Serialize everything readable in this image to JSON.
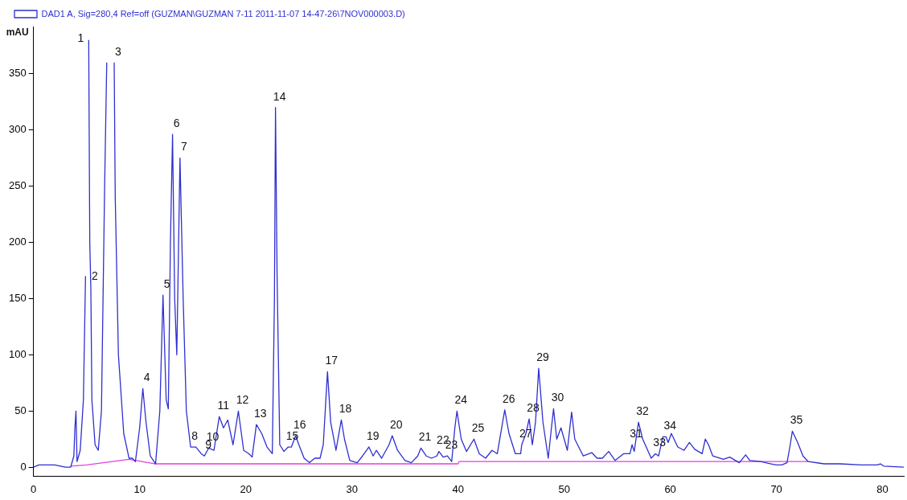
{
  "chart_data": {
    "type": "line",
    "ylabel": "mAU",
    "legend": "top left",
    "grid": false,
    "marker": "none",
    "line_style": "solid",
    "xlim": [
      0,
      82
    ],
    "ylim": [
      -8,
      392
    ],
    "xticks": [
      0,
      10,
      20,
      30,
      40,
      50,
      60,
      70,
      80
    ],
    "yticks": [
      0,
      50,
      100,
      150,
      200,
      250,
      300,
      350
    ],
    "series": [
      {
        "name": "DAD1 A, Sig=280,4 Ref=off (GUZMAN\\GUZMAN 7-11 2011-11-07 14-47-26\\7NOV000003.D)",
        "color": "#2f2fd0",
        "x": [
          0,
          0.5,
          2,
          3,
          3.5,
          3.8,
          3.9,
          4.0,
          4.1,
          4.4,
          4.7,
          4.9,
          5.0,
          5.2,
          5.3,
          5.4,
          5.5,
          5.8,
          6.1,
          6.4,
          6.7,
          6.9,
          7.0,
          7.5,
          7.6,
          7.7,
          8.0,
          8.5,
          9,
          9.3,
          9.6,
          10.0,
          10.3,
          10.6,
          11,
          11.5,
          11.9,
          12.2,
          12.5,
          12.7,
          12.9,
          13.1,
          13.3,
          13.5,
          13.8,
          14.1,
          14.4,
          14.8,
          15.3,
          15.8,
          16.1,
          16.5,
          17,
          17.5,
          17.9,
          18.3,
          18.8,
          19.3,
          19.8,
          20.3,
          20.6,
          21.0,
          21.5,
          22,
          22.5,
          22.7,
          22.8,
          22.95,
          23.2,
          23.6,
          24.0,
          24.3,
          24.7,
          25,
          25.5,
          26,
          26.5,
          27,
          27.3,
          27.7,
          28,
          28.5,
          29.0,
          29.3,
          29.8,
          30.5,
          31,
          31.6,
          32,
          32.3,
          32.8,
          33.5,
          33.8,
          34.3,
          35,
          35.6,
          36.2,
          36.5,
          37,
          37.5,
          38,
          38.2,
          38.6,
          39,
          39.4,
          39.7,
          39.9,
          40.3,
          40.8,
          41.5,
          42,
          42.6,
          43.2,
          43.7,
          44.2,
          44.4,
          44.8,
          45.4,
          45.9,
          46.0,
          46.4,
          46.7,
          47,
          47.3,
          47.6,
          48,
          48.5,
          48.8,
          49.0,
          49.3,
          49.7,
          50.3,
          50.7,
          51,
          51.8,
          52.6,
          53.1,
          53.6,
          54.2,
          54.8,
          55.6,
          56.2,
          56.4,
          56.6,
          57.0,
          57.4,
          58.2,
          58.6,
          58.9,
          59.3,
          59.6,
          59.8,
          60.1,
          60.7,
          61.3,
          61.8,
          62.3,
          63.0,
          63.3,
          63.6,
          64,
          65,
          65.6,
          66.5,
          67.1,
          67.5,
          68.5,
          69.5,
          70,
          70.5,
          71,
          71.3,
          71.5,
          72,
          72.5,
          73,
          74.5,
          76,
          78,
          79.5,
          79.8,
          80.1,
          82
        ],
        "values": [
          0,
          2,
          2,
          0,
          0,
          10,
          35,
          50,
          5,
          15,
          60,
          170,
          null,
          380,
          200,
          160,
          60,
          20,
          15,
          50,
          250,
          360,
          null,
          null,
          360,
          240,
          100,
          30,
          8,
          8,
          5,
          35,
          70,
          40,
          10,
          3,
          50,
          153,
          60,
          52,
          200,
          296,
          150,
          100,
          275,
          150,
          50,
          18,
          18,
          12,
          10,
          17,
          15,
          45,
          35,
          42,
          20,
          50,
          15,
          12,
          9,
          38,
          30,
          18,
          12,
          150,
          320,
          170,
          20,
          14,
          18,
          18,
          28,
          20,
          8,
          4,
          8,
          8,
          20,
          85,
          40,
          15,
          42,
          25,
          6,
          4,
          10,
          18,
          10,
          15,
          8,
          20,
          28,
          15,
          6,
          4,
          10,
          17,
          10,
          8,
          10,
          14,
          9,
          10,
          5,
          35,
          50,
          25,
          14,
          25,
          12,
          8,
          15,
          12,
          40,
          51,
          30,
          12,
          12,
          20,
          30,
          43,
          20,
          40,
          88,
          40,
          8,
          35,
          52,
          25,
          35,
          15,
          49,
          25,
          10,
          13,
          8,
          8,
          14,
          6,
          12,
          12,
          20,
          14,
          40,
          25,
          8,
          12,
          10,
          27,
          27,
          22,
          30,
          18,
          15,
          22,
          16,
          12,
          25,
          20,
          10,
          7,
          9,
          4,
          11,
          6,
          5,
          3,
          2,
          2,
          4,
          20,
          32,
          22,
          10,
          5,
          3,
          3,
          2,
          2,
          3,
          1,
          0
        ]
      },
      {
        "color": "#e040e0",
        "x": [
          3.5,
          5,
          9,
          11.5,
          40,
          40.1,
          69.5,
          71,
          73
        ],
        "values": [
          1,
          2,
          7,
          3,
          3,
          5,
          5,
          5,
          5
        ]
      }
    ],
    "annotations": [
      {
        "text": "1",
        "x": 5.2,
        "y": 380
      },
      {
        "text": "2",
        "x": 5.4,
        "y": 160
      },
      {
        "text": "3",
        "x": 7.6,
        "y": 360
      },
      {
        "text": "4",
        "x": 10.3,
        "y": 70
      },
      {
        "text": "5",
        "x": 12.2,
        "y": 153
      },
      {
        "text": "6",
        "x": 13.1,
        "y": 296
      },
      {
        "text": "7",
        "x": 13.8,
        "y": 275
      },
      {
        "text": "8",
        "x": 14.8,
        "y": 18
      },
      {
        "text": "9",
        "x": 16.1,
        "y": 10
      },
      {
        "text": "10",
        "x": 16.5,
        "y": 17
      },
      {
        "text": "11",
        "x": 17.5,
        "y": 45
      },
      {
        "text": "12",
        "x": 19.3,
        "y": 50
      },
      {
        "text": "13",
        "x": 21.0,
        "y": 38
      },
      {
        "text": "14",
        "x": 22.8,
        "y": 320
      },
      {
        "text": "15",
        "x": 24.0,
        "y": 18
      },
      {
        "text": "16",
        "x": 24.7,
        "y": 28
      },
      {
        "text": "17",
        "x": 27.7,
        "y": 85
      },
      {
        "text": "18",
        "x": 29.0,
        "y": 42
      },
      {
        "text": "19",
        "x": 31.6,
        "y": 18
      },
      {
        "text": "20",
        "x": 33.8,
        "y": 28
      },
      {
        "text": "21",
        "x": 36.5,
        "y": 17
      },
      {
        "text": "22",
        "x": 38.2,
        "y": 14
      },
      {
        "text": "23",
        "x": 39,
        "y": 10
      },
      {
        "text": "24",
        "x": 39.9,
        "y": 50
      },
      {
        "text": "25",
        "x": 41.5,
        "y": 25
      },
      {
        "text": "26",
        "x": 44.4,
        "y": 51
      },
      {
        "text": "27",
        "x": 46.0,
        "y": 20
      },
      {
        "text": "28",
        "x": 46.7,
        "y": 43
      },
      {
        "text": "29",
        "x": 47.6,
        "y": 88
      },
      {
        "text": "30",
        "x": 49.0,
        "y": 52
      },
      {
        "text": "31",
        "x": 56.4,
        "y": 20
      },
      {
        "text": "32",
        "x": 57.0,
        "y": 40
      },
      {
        "text": "33",
        "x": 58.6,
        "y": 12
      },
      {
        "text": "34",
        "x": 59.6,
        "y": 27
      },
      {
        "text": "35",
        "x": 71.5,
        "y": 32
      }
    ]
  }
}
